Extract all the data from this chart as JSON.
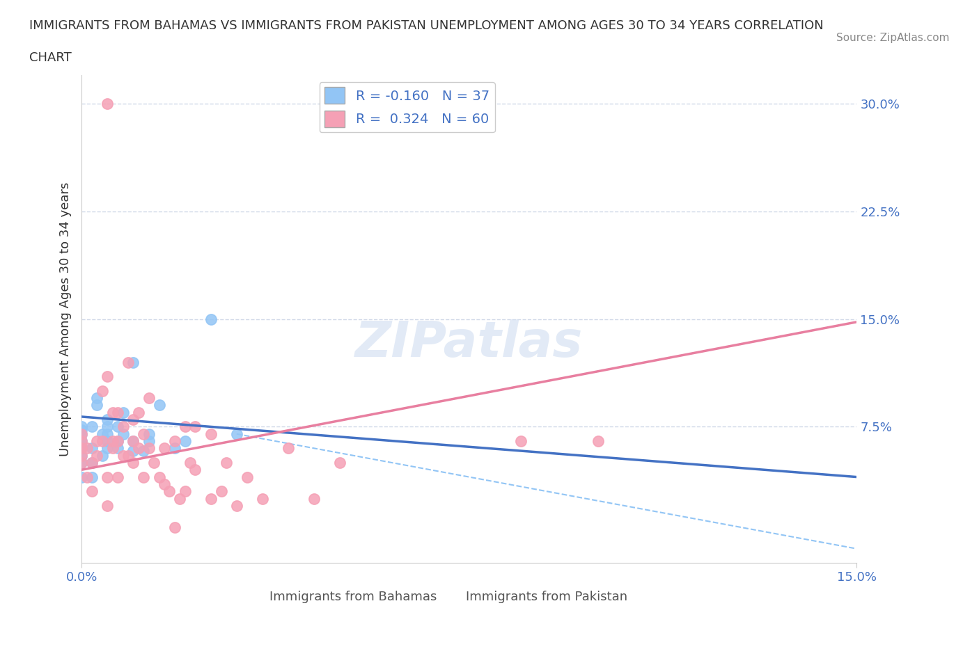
{
  "title_line1": "IMMIGRANTS FROM BAHAMAS VS IMMIGRANTS FROM PAKISTAN UNEMPLOYMENT AMONG AGES 30 TO 34 YEARS CORRELATION",
  "title_line2": "CHART",
  "source": "Source: ZipAtlas.com",
  "xlabel": "",
  "ylabel": "Unemployment Among Ages 30 to 34 years",
  "xlim": [
    0.0,
    0.15
  ],
  "ylim": [
    -0.02,
    0.32
  ],
  "xticks": [
    0.0,
    0.05,
    0.1,
    0.15
  ],
  "xtick_labels": [
    "0.0%",
    "",
    "",
    "15.0%"
  ],
  "ytick_labels_right": [
    "30.0%",
    "22.5%",
    "15.0%",
    "7.5%"
  ],
  "ytick_positions_right": [
    0.3,
    0.225,
    0.15,
    0.075
  ],
  "watermark": "ZIPatlas",
  "legend_r_bahamas": "-0.160",
  "legend_n_bahamas": "37",
  "legend_r_pakistan": "0.324",
  "legend_n_pakistan": "60",
  "bahamas_color": "#92c5f5",
  "pakistan_color": "#f5a0b5",
  "bahamas_line_color": "#4472C4",
  "pakistan_line_color": "#E87FA0",
  "trend_line_dashed_color": "#92c5f5",
  "background_color": "#ffffff",
  "grid_color": "#d0d8e8",
  "bahamas_x": [
    0.0,
    0.0,
    0.0,
    0.0,
    0.0,
    0.0,
    0.0,
    0.0,
    0.002,
    0.002,
    0.002,
    0.002,
    0.003,
    0.003,
    0.004,
    0.004,
    0.005,
    0.005,
    0.005,
    0.005,
    0.005,
    0.007,
    0.007,
    0.007,
    0.008,
    0.008,
    0.01,
    0.01,
    0.01,
    0.012,
    0.013,
    0.013,
    0.015,
    0.018,
    0.02,
    0.025,
    0.03
  ],
  "bahamas_y": [
    0.04,
    0.05,
    0.055,
    0.06,
    0.065,
    0.07,
    0.073,
    0.075,
    0.04,
    0.05,
    0.06,
    0.075,
    0.09,
    0.095,
    0.055,
    0.07,
    0.06,
    0.065,
    0.07,
    0.075,
    0.08,
    0.06,
    0.065,
    0.075,
    0.07,
    0.085,
    0.058,
    0.065,
    0.12,
    0.058,
    0.065,
    0.07,
    0.09,
    0.06,
    0.065,
    0.15,
    0.07
  ],
  "pakistan_x": [
    0.0,
    0.0,
    0.0,
    0.0,
    0.0,
    0.001,
    0.001,
    0.002,
    0.002,
    0.003,
    0.003,
    0.004,
    0.004,
    0.005,
    0.005,
    0.005,
    0.006,
    0.006,
    0.006,
    0.007,
    0.007,
    0.007,
    0.008,
    0.008,
    0.009,
    0.009,
    0.01,
    0.01,
    0.01,
    0.011,
    0.011,
    0.012,
    0.012,
    0.013,
    0.013,
    0.014,
    0.015,
    0.016,
    0.016,
    0.017,
    0.018,
    0.018,
    0.019,
    0.02,
    0.02,
    0.021,
    0.022,
    0.022,
    0.025,
    0.025,
    0.027,
    0.028,
    0.03,
    0.032,
    0.035,
    0.04,
    0.045,
    0.05,
    0.085,
    0.1
  ],
  "pakistan_y": [
    0.05,
    0.055,
    0.06,
    0.065,
    0.07,
    0.04,
    0.06,
    0.03,
    0.05,
    0.055,
    0.065,
    0.065,
    0.1,
    0.02,
    0.04,
    0.11,
    0.06,
    0.065,
    0.085,
    0.04,
    0.065,
    0.085,
    0.055,
    0.075,
    0.055,
    0.12,
    0.05,
    0.065,
    0.08,
    0.06,
    0.085,
    0.04,
    0.07,
    0.06,
    0.095,
    0.05,
    0.04,
    0.035,
    0.06,
    0.03,
    0.005,
    0.065,
    0.025,
    0.03,
    0.075,
    0.05,
    0.045,
    0.075,
    0.025,
    0.07,
    0.03,
    0.05,
    0.02,
    0.04,
    0.025,
    0.06,
    0.025,
    0.05,
    0.065,
    0.065
  ],
  "pakistan_outlier_x": [
    0.005
  ],
  "pakistan_outlier_y": [
    0.3
  ],
  "bahamas_trend_x": [
    0.0,
    0.15
  ],
  "bahamas_trend_y_start": 0.082,
  "bahamas_trend_y_end": 0.04,
  "pakistan_trend_x": [
    0.0,
    0.15
  ],
  "pakistan_trend_y_start": 0.045,
  "pakistan_trend_y_end": 0.148
}
